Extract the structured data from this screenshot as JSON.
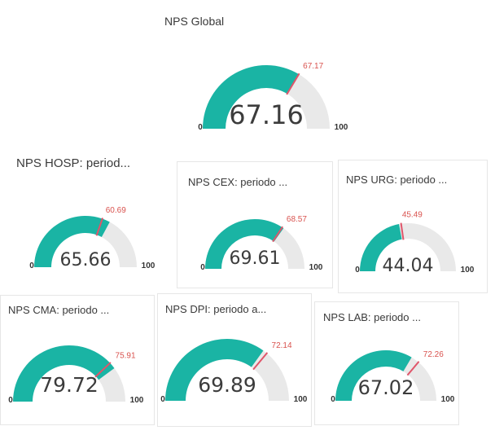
{
  "colors": {
    "fill": "#1ab4a4",
    "track": "#e9e9e9",
    "target": "#e0556a",
    "target_label": "#d9534f",
    "value_text": "#3c3c3c"
  },
  "gauges": [
    {
      "id": "global",
      "title": "NPS Global",
      "value": 67.16,
      "value_label": "67.16",
      "target": 67.17,
      "target_label": "67.17",
      "min_label": "0",
      "max_label": "100",
      "min": 0,
      "max": 100
    },
    {
      "id": "hosp",
      "title": "NPS HOSP: period...",
      "value": 65.66,
      "value_label": "65.66",
      "target": 60.69,
      "target_label": "60.69",
      "min_label": "0",
      "max_label": "100",
      "min": 0,
      "max": 100
    },
    {
      "id": "cex",
      "title": "NPS CEX: periodo ...",
      "value": 69.61,
      "value_label": "69.61",
      "target": 68.57,
      "target_label": "68.57",
      "min_label": "0",
      "max_label": "100",
      "min": 0,
      "max": 100
    },
    {
      "id": "urg",
      "title": "NPS URG: periodo ...",
      "value": 44.04,
      "value_label": "44.04",
      "target": 45.49,
      "target_label": "45.49",
      "min_label": "0",
      "max_label": "100",
      "min": 0,
      "max": 100
    },
    {
      "id": "cma",
      "title": "NPS CMA: periodo ...",
      "value": 79.72,
      "value_label": "79.72",
      "target": 75.91,
      "target_label": "75.91",
      "min_label": "0",
      "max_label": "100",
      "min": 0,
      "max": 100
    },
    {
      "id": "dpi",
      "title": "NPS DPI: periodo a...",
      "value": 69.89,
      "value_label": "69.89",
      "target": 72.14,
      "target_label": "72.14",
      "min_label": "0",
      "max_label": "100",
      "min": 0,
      "max": 100
    },
    {
      "id": "lab",
      "title": "NPS LAB: periodo ...",
      "value": 67.02,
      "value_label": "67.02",
      "target": 72.26,
      "target_label": "72.26",
      "min_label": "0",
      "max_label": "100",
      "min": 0,
      "max": 100
    }
  ]
}
